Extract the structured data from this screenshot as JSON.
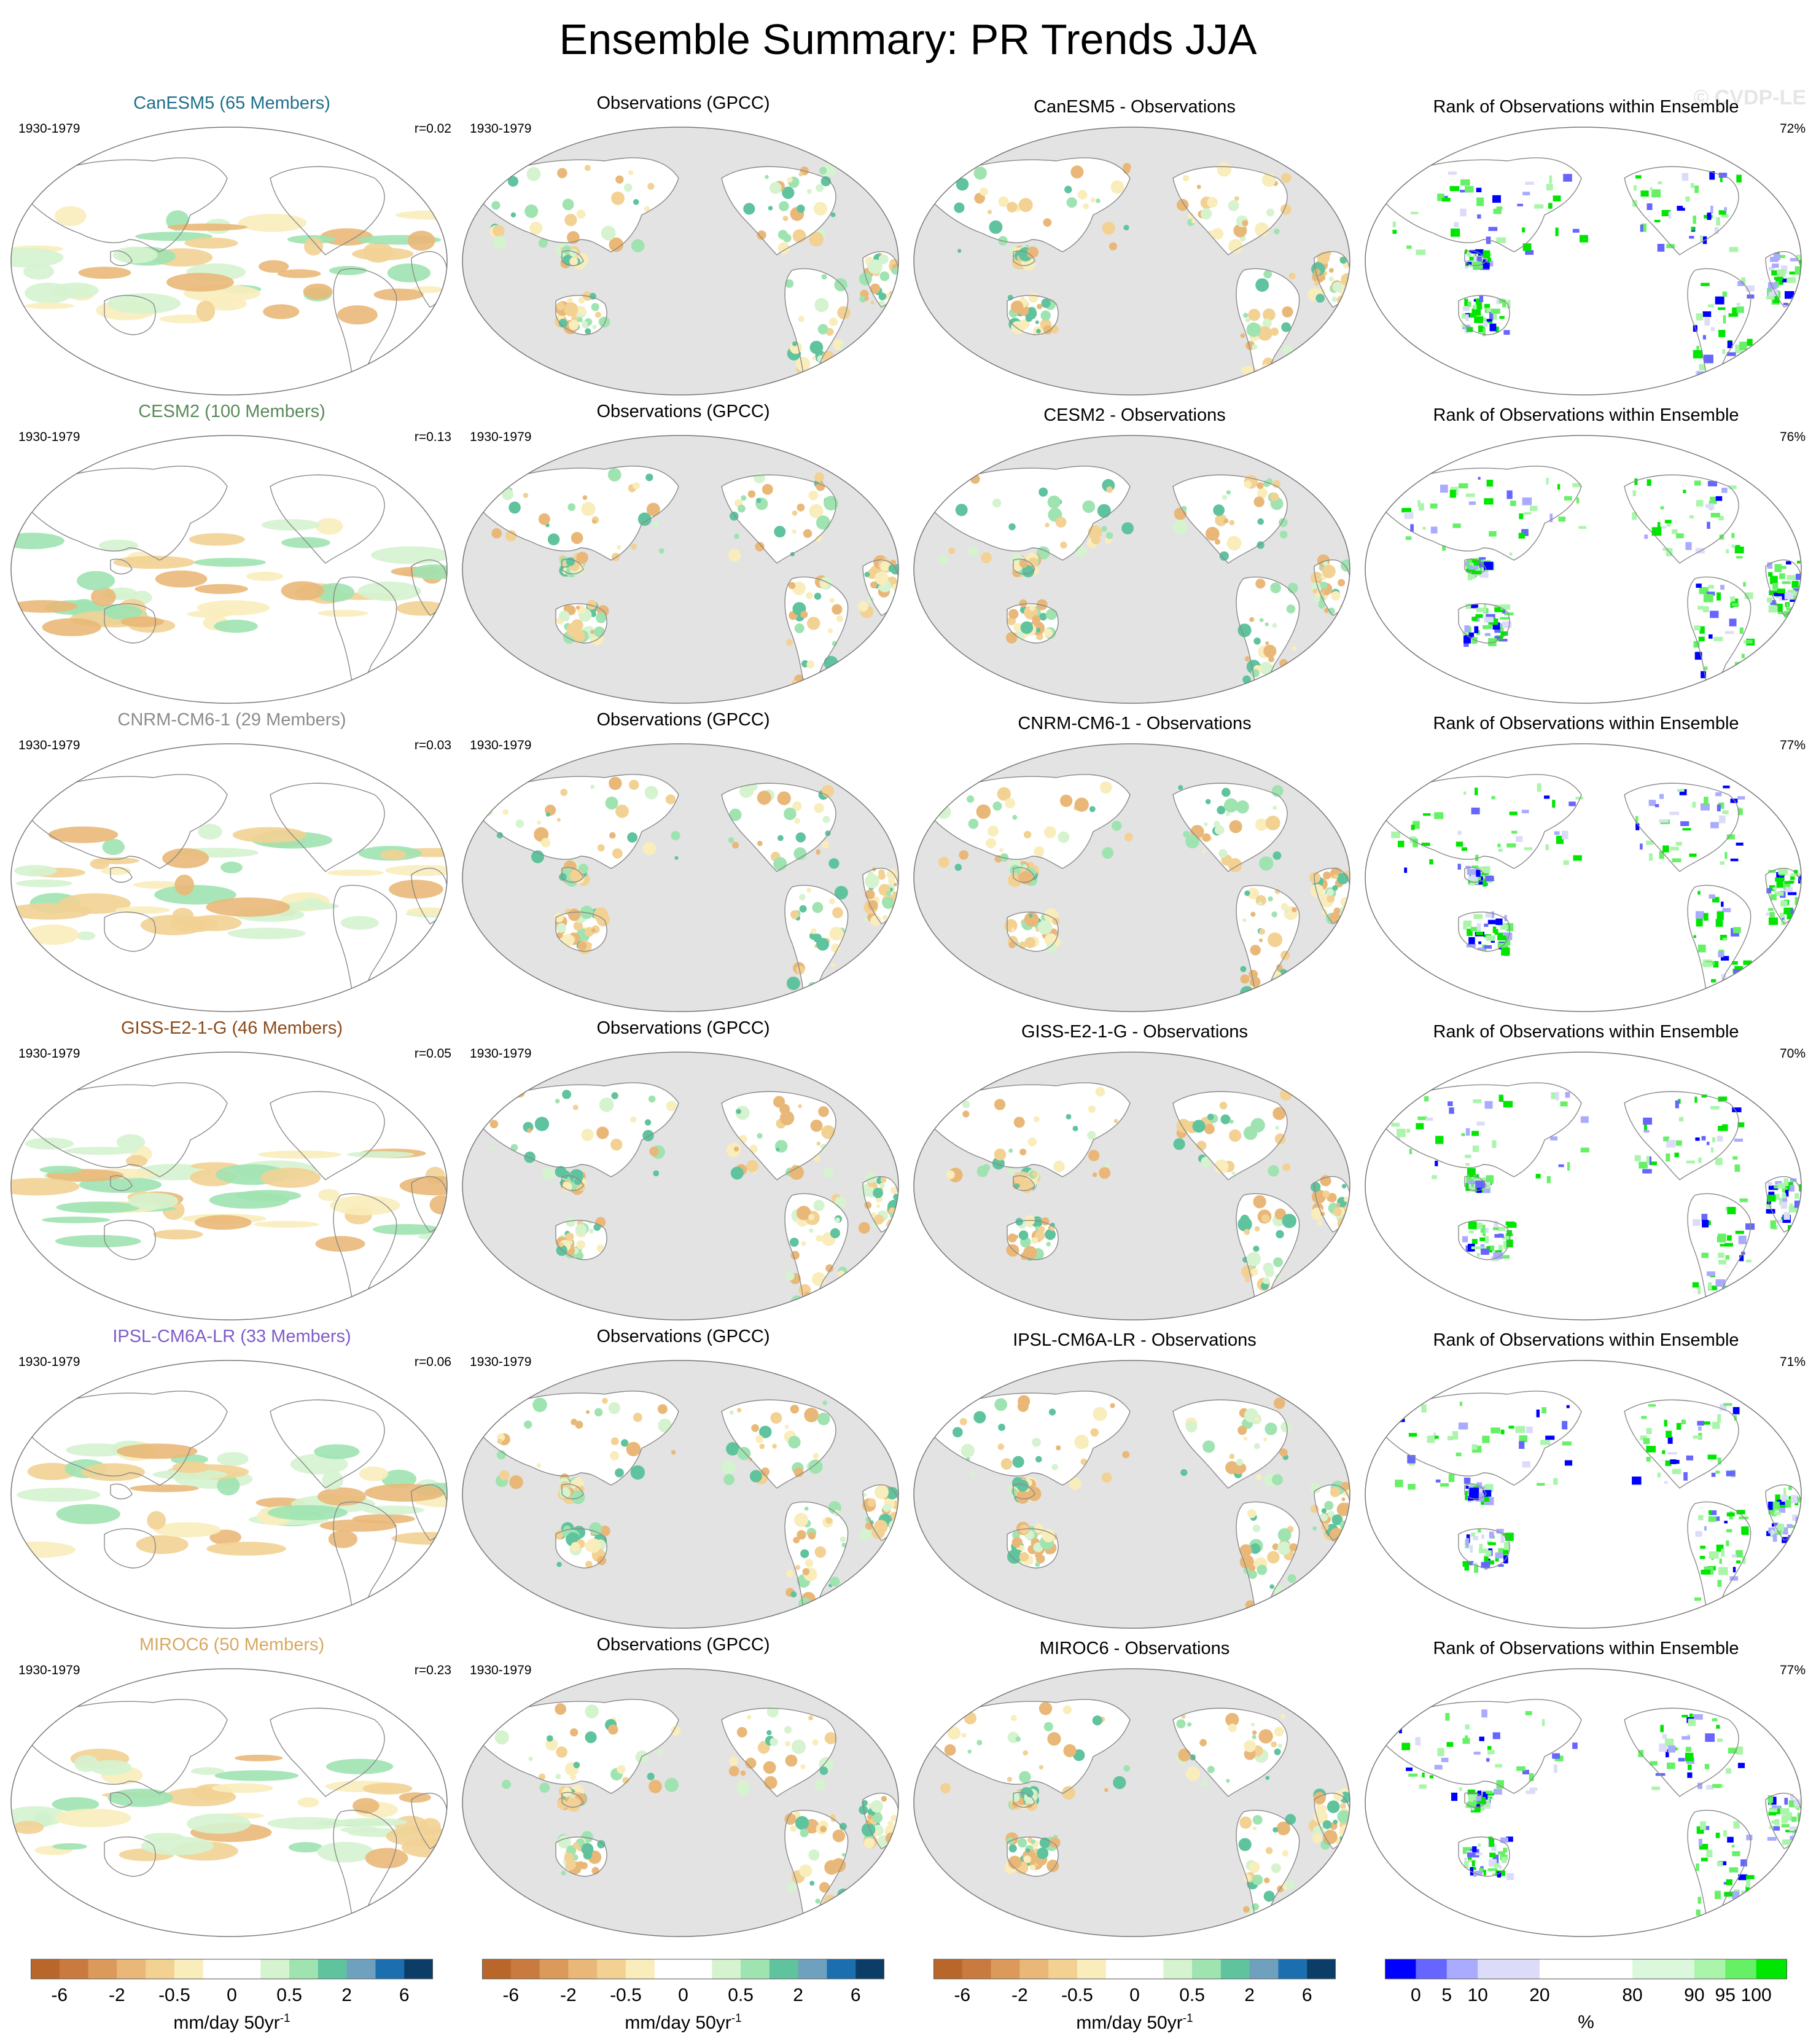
{
  "title": "Ensemble Summary: PR Trends JJA",
  "watermark": "© CVDP-LE",
  "period": "1930-1979",
  "obs_title": "Observations (GPCC)",
  "rank_title": "Rank of Observations within Ensemble",
  "rows": [
    {
      "model": "CanESM5 (65 Members)",
      "model_color": "#1f6f8b",
      "r": "r=0.02",
      "diff_title": "CanESM5 - Observations",
      "rank_pct": "72%"
    },
    {
      "model": "CESM2 (100 Members)",
      "model_color": "#5a8a5a",
      "r": "r=0.13",
      "diff_title": "CESM2 - Observations",
      "rank_pct": "76%"
    },
    {
      "model": "CNRM-CM6-1 (29 Members)",
      "model_color": "#8c8c8c",
      "r": "r=0.03",
      "diff_title": "CNRM-CM6-1 - Observations",
      "rank_pct": "77%"
    },
    {
      "model": "GISS-E2-1-G (46 Members)",
      "model_color": "#8b4a1a",
      "r": "r=0.05",
      "diff_title": "GISS-E2-1-G - Observations",
      "rank_pct": "70%"
    },
    {
      "model": "IPSL-CM6A-LR (33 Members)",
      "model_color": "#7f5cc8",
      "r": "r=0.06",
      "diff_title": "IPSL-CM6A-LR - Observations",
      "rank_pct": "71%"
    },
    {
      "model": "MIROC6 (50 Members)",
      "model_color": "#d8a860",
      "r": "r=0.23",
      "diff_title": "MIROC6 - Observations",
      "rank_pct": "77%"
    }
  ],
  "trend_colorbar": {
    "unit": "mm/day 50yr",
    "unit_sup": "-1",
    "colors": [
      "#b8662a",
      "#c97a3e",
      "#dc9a5a",
      "#e9b878",
      "#f2d193",
      "#f9edbc",
      "#ffffff",
      "#ffffff",
      "#d5f3cf",
      "#9fe3b1",
      "#5fc39e",
      "#6fa1bf",
      "#1c6fae",
      "#0c3d66"
    ],
    "tick_labels": [
      "-6",
      "-2",
      "-0.5",
      "0",
      "0.5",
      "2",
      "6"
    ]
  },
  "rank_colorbar": {
    "unit": "%",
    "colors": [
      "#0000ff",
      "#6666ff",
      "#aaaaff",
      "#dcdcf8",
      "#dcdcf8",
      "#ffffff",
      "#ffffff",
      "#ffffff",
      "#dcf8dc",
      "#dcf8dc",
      "#aaf5aa",
      "#66f066",
      "#00e600"
    ],
    "tick_labels": [
      "0",
      "5",
      "10",
      "20",
      "80",
      "90",
      "95",
      "100"
    ]
  }
}
